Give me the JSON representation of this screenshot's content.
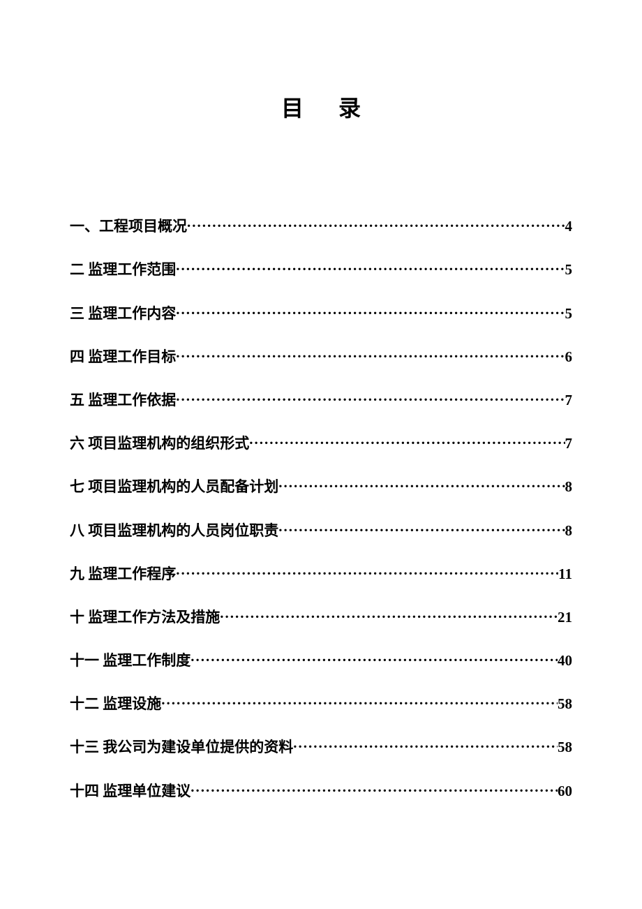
{
  "title": "目录",
  "entries": [
    {
      "label": "一、工程项目概况",
      "page": "4"
    },
    {
      "label": "二  监理工作范围",
      "page": "5"
    },
    {
      "label": "三  监理工作内容",
      "page": "5"
    },
    {
      "label": "四  监理工作目标",
      "page": "6"
    },
    {
      "label": "五  监理工作依据",
      "page": "7"
    },
    {
      "label": "六  项目监理机构的组织形式",
      "page": "7"
    },
    {
      "label": "七    项目监理机构的人员配备计划",
      "page": "8"
    },
    {
      "label": "八  项目监理机构的人员岗位职责",
      "page": "8"
    },
    {
      "label": "九  监理工作程序",
      "page": "11"
    },
    {
      "label": "十  监理工作方法及措施",
      "page": "21"
    },
    {
      "label": "十一  监理工作制度",
      "page": "40"
    },
    {
      "label": "十二    监理设施",
      "page": "58"
    },
    {
      "label": "十三  我公司为建设单位提供的资料",
      "page": "58"
    },
    {
      "label": "十四    监理单位建议",
      "page": "60"
    }
  ],
  "colors": {
    "background": "#ffffff",
    "text": "#000000"
  },
  "typography": {
    "title_fontsize": 32,
    "entry_fontsize": 21,
    "font_family": "SimSun"
  }
}
